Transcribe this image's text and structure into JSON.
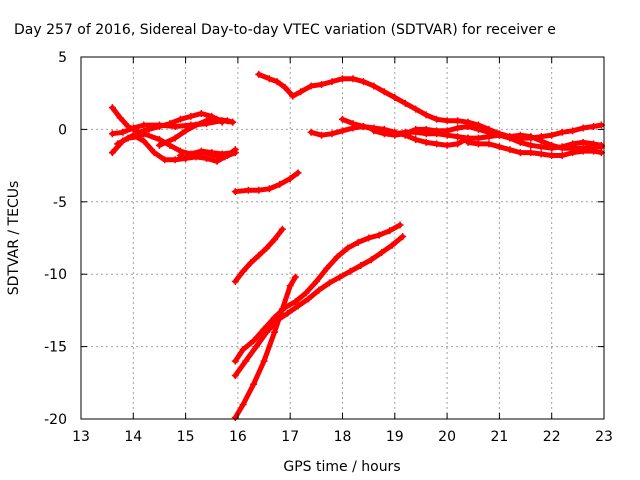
{
  "chart_data": {
    "type": "line",
    "title": "Day 257 of 2016, Sidereal Day-to-day VTEC variation (SDTVAR) for receiver e",
    "xlabel": "GPS time / hours",
    "ylabel": "SDTVAR / TECUs",
    "xlim": [
      13,
      23
    ],
    "ylim": [
      -20,
      5
    ],
    "xticks": [
      13,
      14,
      15,
      16,
      17,
      18,
      19,
      20,
      21,
      22,
      23
    ],
    "yticks": [
      5,
      0,
      -5,
      -10,
      -15,
      -20
    ],
    "xtick_labels": [
      "13",
      "14",
      "15",
      "16",
      "17",
      "18",
      "19",
      "20",
      "21",
      "22",
      "23"
    ],
    "ytick_labels": [
      "5",
      "0",
      "-5",
      "-10",
      "-15",
      "-20"
    ],
    "grid": true,
    "legend": "none",
    "marker": "+",
    "color": "#ff0000",
    "series": [
      {
        "points": [
          [
            13.6,
            1.5
          ],
          [
            13.75,
            0.8
          ],
          [
            13.9,
            0.2
          ],
          [
            14.1,
            -0.2
          ],
          [
            14.3,
            0.0
          ],
          [
            14.5,
            0.2
          ],
          [
            14.7,
            0.4
          ],
          [
            14.9,
            0.7
          ],
          [
            15.1,
            0.9
          ],
          [
            15.3,
            1.1
          ],
          [
            15.5,
            0.9
          ],
          [
            15.7,
            0.5
          ]
        ]
      },
      {
        "points": [
          [
            13.6,
            -0.3
          ],
          [
            13.8,
            -0.2
          ],
          [
            14.0,
            0.1
          ],
          [
            14.2,
            0.3
          ],
          [
            14.5,
            0.3
          ],
          [
            14.8,
            0.2
          ],
          [
            15.1,
            0.3
          ],
          [
            15.4,
            0.4
          ],
          [
            15.7,
            0.6
          ],
          [
            15.9,
            0.5
          ]
        ]
      },
      {
        "points": [
          [
            13.6,
            -1.6
          ],
          [
            13.8,
            -0.8
          ],
          [
            14.0,
            -0.4
          ],
          [
            14.2,
            -0.8
          ],
          [
            14.4,
            -1.6
          ],
          [
            14.6,
            -2.1
          ],
          [
            14.8,
            -2.1
          ],
          [
            15.0,
            -2.0
          ],
          [
            15.2,
            -1.9
          ],
          [
            15.4,
            -2.0
          ],
          [
            15.6,
            -2.2
          ],
          [
            15.8,
            -1.8
          ],
          [
            15.95,
            -1.4
          ]
        ]
      },
      {
        "points": [
          [
            13.7,
            -1.0
          ],
          [
            13.9,
            -0.6
          ],
          [
            14.1,
            -0.5
          ],
          [
            14.2,
            -0.3
          ],
          [
            14.5,
            -0.7
          ],
          [
            14.7,
            -1.1
          ],
          [
            14.9,
            -1.5
          ],
          [
            15.1,
            -1.7
          ],
          [
            15.3,
            -1.5
          ],
          [
            15.5,
            -1.6
          ],
          [
            15.7,
            -1.7
          ],
          [
            15.9,
            -1.6
          ],
          [
            15.95,
            -1.6
          ]
        ]
      },
      {
        "points": [
          [
            14.5,
            -1.1
          ],
          [
            14.8,
            -0.6
          ],
          [
            15.0,
            -0.1
          ],
          [
            15.2,
            0.3
          ],
          [
            15.4,
            0.6
          ],
          [
            15.6,
            0.7
          ],
          [
            15.8,
            0.6
          ],
          [
            15.9,
            0.5
          ]
        ]
      },
      {
        "points": [
          [
            16.4,
            3.8
          ],
          [
            16.6,
            3.5
          ],
          [
            16.75,
            3.3
          ],
          [
            16.9,
            2.9
          ],
          [
            17.05,
            2.3
          ],
          [
            17.2,
            2.6
          ],
          [
            17.4,
            3.0
          ],
          [
            17.6,
            3.1
          ],
          [
            17.8,
            3.3
          ],
          [
            18.0,
            3.5
          ],
          [
            18.2,
            3.5
          ],
          [
            18.4,
            3.3
          ],
          [
            18.6,
            3.0
          ],
          [
            18.8,
            2.6
          ],
          [
            19.0,
            2.2
          ],
          [
            19.2,
            1.8
          ],
          [
            19.4,
            1.4
          ],
          [
            19.6,
            1.0
          ],
          [
            19.8,
            0.7
          ],
          [
            20.0,
            0.6
          ],
          [
            20.2,
            0.6
          ],
          [
            20.4,
            0.5
          ],
          [
            20.6,
            0.3
          ],
          [
            20.8,
            0.0
          ],
          [
            21.0,
            -0.3
          ],
          [
            21.2,
            -0.5
          ],
          [
            21.4,
            -0.6
          ],
          [
            21.6,
            -0.6
          ],
          [
            21.8,
            -0.5
          ],
          [
            22.0,
            -0.4
          ],
          [
            22.2,
            -0.2
          ],
          [
            22.4,
            -0.1
          ],
          [
            22.6,
            0.1
          ],
          [
            22.8,
            0.2
          ],
          [
            22.95,
            0.3
          ]
        ]
      },
      {
        "points": [
          [
            17.4,
            -0.2
          ],
          [
            17.6,
            -0.4
          ],
          [
            17.8,
            -0.3
          ],
          [
            18.0,
            -0.1
          ],
          [
            18.2,
            0.1
          ],
          [
            18.4,
            0.2
          ],
          [
            18.6,
            0.1
          ],
          [
            18.8,
            0.0
          ],
          [
            19.0,
            -0.2
          ],
          [
            19.2,
            -0.4
          ],
          [
            19.4,
            -0.7
          ],
          [
            19.6,
            -0.9
          ],
          [
            19.8,
            -1.0
          ],
          [
            20.0,
            -1.1
          ],
          [
            20.2,
            -1.0
          ],
          [
            20.4,
            -0.6
          ]
        ]
      },
      {
        "points": [
          [
            18.0,
            0.7
          ],
          [
            18.2,
            0.4
          ],
          [
            18.4,
            0.2
          ],
          [
            18.6,
            0.0
          ],
          [
            18.8,
            -0.2
          ],
          [
            19.0,
            -0.3
          ],
          [
            19.2,
            -0.2
          ],
          [
            19.4,
            -0.2
          ],
          [
            19.6,
            -0.3
          ],
          [
            19.8,
            -0.3
          ],
          [
            20.0,
            -0.4
          ],
          [
            20.2,
            -0.5
          ],
          [
            20.4,
            -0.6
          ],
          [
            20.6,
            -0.6
          ],
          [
            20.8,
            -0.5
          ],
          [
            21.0,
            -0.4
          ],
          [
            21.2,
            -0.6
          ],
          [
            21.4,
            -0.9
          ],
          [
            21.6,
            -1.1
          ],
          [
            21.8,
            -1.2
          ],
          [
            22.0,
            -1.3
          ],
          [
            22.2,
            -1.2
          ],
          [
            22.4,
            -1.0
          ],
          [
            22.6,
            -0.9
          ],
          [
            22.8,
            -1.0
          ],
          [
            22.95,
            -1.1
          ]
        ]
      },
      {
        "points": [
          [
            18.6,
            -0.1
          ],
          [
            18.8,
            -0.3
          ],
          [
            19.0,
            -0.4
          ],
          [
            19.2,
            -0.3
          ],
          [
            19.4,
            0.0
          ],
          [
            19.6,
            0.0
          ],
          [
            19.8,
            -0.1
          ],
          [
            20.0,
            -0.1
          ],
          [
            20.2,
            0.1
          ],
          [
            20.4,
            0.2
          ],
          [
            20.6,
            0.0
          ],
          [
            20.8,
            -0.2
          ],
          [
            21.0,
            -0.4
          ],
          [
            21.2,
            -0.5
          ],
          [
            21.4,
            -0.4
          ],
          [
            21.6,
            -0.5
          ],
          [
            21.8,
            -0.8
          ],
          [
            22.0,
            -1.1
          ],
          [
            22.2,
            -1.3
          ],
          [
            22.4,
            -1.3
          ],
          [
            22.6,
            -1.3
          ],
          [
            22.8,
            -1.2
          ],
          [
            22.95,
            -1.2
          ]
        ]
      },
      {
        "points": [
          [
            20.4,
            -0.9
          ],
          [
            20.6,
            -1.0
          ],
          [
            20.8,
            -1.0
          ],
          [
            21.0,
            -1.2
          ],
          [
            21.2,
            -1.4
          ],
          [
            21.4,
            -1.6
          ],
          [
            21.6,
            -1.6
          ],
          [
            21.8,
            -1.7
          ],
          [
            22.0,
            -1.8
          ],
          [
            22.2,
            -1.8
          ],
          [
            22.4,
            -1.6
          ],
          [
            22.6,
            -1.5
          ],
          [
            22.8,
            -1.5
          ],
          [
            22.95,
            -1.6
          ]
        ]
      },
      {
        "points": [
          [
            15.95,
            -1.6
          ],
          [
            15.75,
            -1.9
          ],
          [
            15.55,
            -1.8
          ],
          [
            15.35,
            -1.6
          ],
          [
            15.15,
            -1.7
          ],
          [
            15.0,
            -2.0
          ],
          [
            14.9,
            -1.8
          ]
        ]
      },
      {
        "points": [
          [
            15.95,
            -4.3
          ],
          [
            16.2,
            -4.2
          ],
          [
            16.4,
            -4.2
          ],
          [
            16.6,
            -4.1
          ],
          [
            16.8,
            -3.8
          ],
          [
            17.0,
            -3.4
          ],
          [
            17.15,
            -3.0
          ]
        ]
      },
      {
        "points": [
          [
            15.95,
            -10.5
          ],
          [
            16.1,
            -9.8
          ],
          [
            16.25,
            -9.2
          ],
          [
            16.4,
            -8.7
          ],
          [
            16.55,
            -8.2
          ],
          [
            16.7,
            -7.6
          ],
          [
            16.85,
            -6.9
          ]
        ]
      },
      {
        "points": [
          [
            15.95,
            -16.0
          ],
          [
            16.1,
            -15.2
          ],
          [
            16.3,
            -14.6
          ],
          [
            16.5,
            -13.8
          ],
          [
            16.7,
            -13.0
          ],
          [
            16.9,
            -12.3
          ],
          [
            17.1,
            -11.9
          ],
          [
            17.3,
            -11.3
          ],
          [
            17.5,
            -10.5
          ],
          [
            17.7,
            -9.6
          ],
          [
            17.9,
            -8.8
          ],
          [
            18.1,
            -8.2
          ],
          [
            18.3,
            -7.8
          ],
          [
            18.5,
            -7.5
          ],
          [
            18.7,
            -7.3
          ],
          [
            18.9,
            -7.0
          ],
          [
            19.1,
            -6.6
          ]
        ]
      },
      {
        "points": [
          [
            15.95,
            -17.0
          ],
          [
            16.15,
            -16.0
          ],
          [
            16.35,
            -15.0
          ],
          [
            16.55,
            -14.0
          ],
          [
            16.75,
            -13.2
          ],
          [
            16.95,
            -12.7
          ],
          [
            17.15,
            -12.2
          ],
          [
            17.35,
            -11.7
          ],
          [
            17.55,
            -11.1
          ],
          [
            17.75,
            -10.6
          ],
          [
            17.95,
            -10.2
          ],
          [
            18.15,
            -9.8
          ],
          [
            18.35,
            -9.4
          ],
          [
            18.55,
            -9.0
          ],
          [
            18.75,
            -8.5
          ],
          [
            18.95,
            -8.0
          ],
          [
            19.15,
            -7.4
          ]
        ]
      },
      {
        "points": [
          [
            15.95,
            -19.9
          ],
          [
            16.1,
            -19.0
          ],
          [
            16.3,
            -17.6
          ],
          [
            16.5,
            -16.0
          ],
          [
            16.7,
            -14.0
          ],
          [
            16.85,
            -12.4
          ],
          [
            17.0,
            -10.8
          ],
          [
            17.1,
            -10.2
          ]
        ]
      }
    ]
  }
}
